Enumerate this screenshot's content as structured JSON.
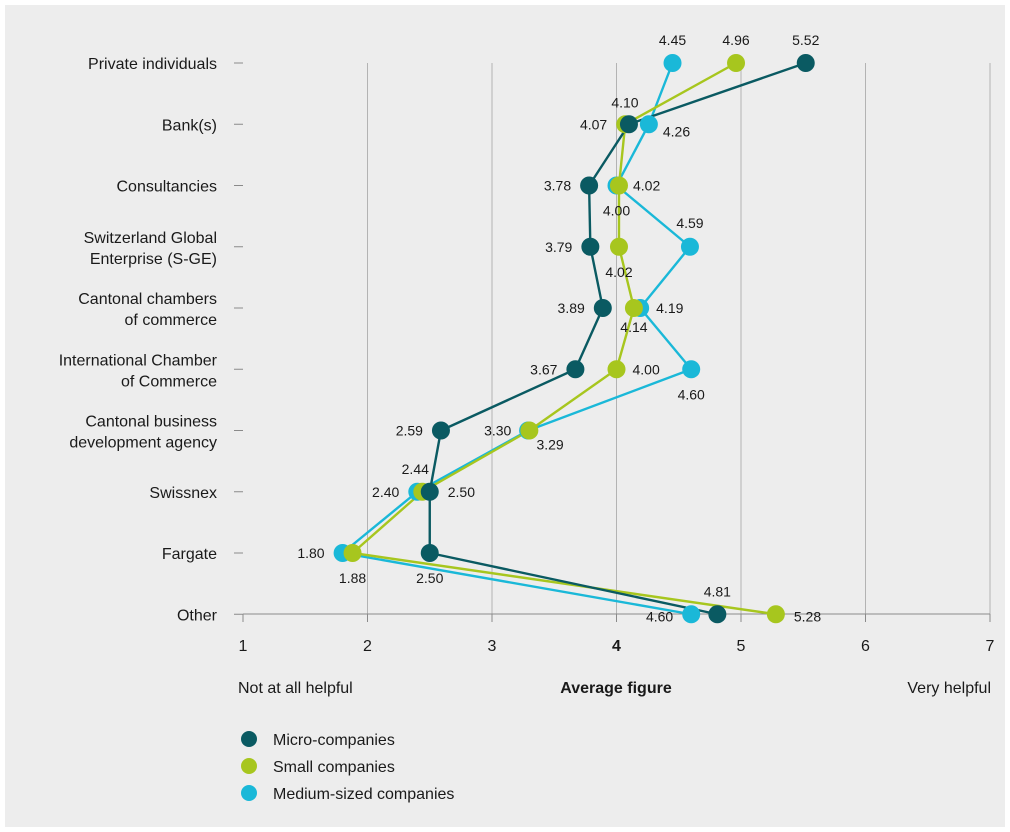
{
  "chart_data": {
    "type": "line",
    "orientation": "horizontal-value-axis",
    "categories": [
      "Private individuals",
      "Bank(s)",
      "Consultancies",
      "Switzerland Global Enterprise (S-GE)",
      "Cantonal chambers of commerce",
      "International Chamber of Commerce",
      "Cantonal business development agency",
      "Swissnex",
      "Fargate",
      "Other"
    ],
    "category_lines": [
      [
        "Private individuals"
      ],
      [
        "Bank(s)"
      ],
      [
        "Consultancies"
      ],
      [
        "Switzerland Global",
        "Enterprise (S-GE)"
      ],
      [
        "Cantonal chambers",
        "of commerce"
      ],
      [
        "International Chamber",
        "of Commerce"
      ],
      [
        "Cantonal business",
        "development agency"
      ],
      [
        "Swissnex"
      ],
      [
        "Fargate"
      ],
      [
        "Other"
      ]
    ],
    "series": [
      {
        "name": "Micro-companies",
        "color": "#0a5a62",
        "values": [
          5.52,
          4.1,
          3.78,
          3.79,
          3.89,
          3.67,
          2.59,
          2.5,
          2.5,
          4.81
        ]
      },
      {
        "name": "Small companies",
        "color": "#a7c61e",
        "values": [
          4.96,
          4.07,
          4.02,
          4.02,
          4.14,
          4.0,
          3.3,
          2.44,
          1.88,
          5.28
        ]
      },
      {
        "name": "Medium-sized companies",
        "color": "#1ab8d8",
        "values": [
          4.45,
          4.26,
          4.0,
          4.59,
          4.19,
          4.6,
          3.29,
          2.4,
          1.8,
          4.6
        ]
      }
    ],
    "x_ticks": [
      "1",
      "2",
      "3",
      "4",
      "5",
      "6",
      "7"
    ],
    "xlim": [
      1,
      7
    ],
    "highlight_tick": "4",
    "xlabel": "Average figure",
    "scale_low_label": "Not at all helpful",
    "scale_high_label": "Very helpful",
    "grid": true,
    "legend_position": "bottom-left"
  },
  "colors": {
    "background": "#ededed",
    "grid": "#b3b3b3",
    "axis": "#8a8a8a"
  }
}
